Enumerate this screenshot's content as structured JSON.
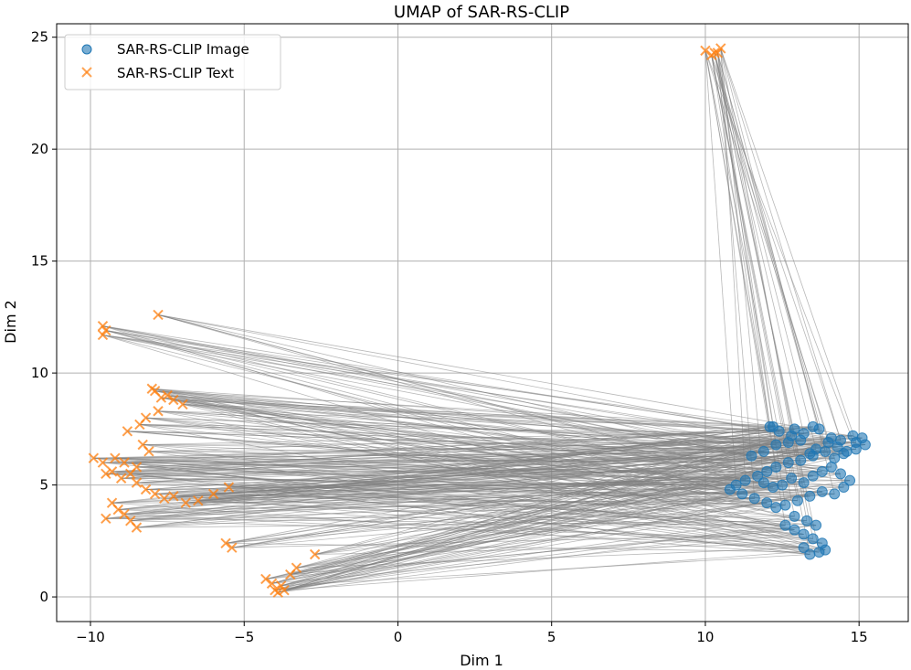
{
  "chart_data": {
    "type": "scatter",
    "title": "UMAP of SAR-RS-CLIP",
    "xlabel": "Dim 1",
    "ylabel": "Dim 2",
    "xlim": [
      -11.1,
      16.6
    ],
    "ylim": [
      -1.1,
      25.6
    ],
    "xticks": [
      -10,
      -5,
      0,
      5,
      10,
      15
    ],
    "yticks": [
      0,
      5,
      10,
      15,
      20,
      25
    ],
    "x_tick_labels": [
      "−10",
      "−5",
      "0",
      "5",
      "10",
      "15"
    ],
    "y_tick_labels": [
      "0",
      "5",
      "10",
      "15",
      "20",
      "25"
    ],
    "grid": true,
    "legend_position": "upper-left",
    "connectors": "each text point is joined by a gray line to its paired image point",
    "colors": {
      "image": "#1f77b4",
      "text": "#ff7f0e",
      "connector": "#808080",
      "grid": "#b0b0b0"
    },
    "series": [
      {
        "name": "SAR-RS-CLIP Image",
        "marker": "circle",
        "color": "#1f77b4",
        "x": [
          12.1,
          12.4,
          12.9,
          13.2,
          13.5,
          13.7,
          14.1,
          14.4,
          14.8,
          15.1,
          15.2,
          14.9,
          14.5,
          14.2,
          13.9,
          13.5,
          13.1,
          12.7,
          12.3,
          12.0,
          11.7,
          11.3,
          11.0,
          10.8,
          11.2,
          11.6,
          12.0,
          12.3,
          12.6,
          13.0,
          13.4,
          13.8,
          14.2,
          14.5,
          14.7,
          14.4,
          14.1,
          13.8,
          13.5,
          13.2,
          12.8,
          12.5,
          12.2,
          11.9,
          12.6,
          12.9,
          13.2,
          13.5,
          13.8,
          13.9,
          13.7,
          13.4,
          13.2,
          13.6,
          13.3,
          12.9,
          11.5,
          11.9,
          12.3,
          12.7,
          13.1,
          13.6,
          14.0,
          14.3,
          14.6,
          14.9,
          12.2,
          12.8,
          13.4
        ],
        "y": [
          7.6,
          7.4,
          7.5,
          7.3,
          7.6,
          7.5,
          7.1,
          7.0,
          7.2,
          7.1,
          6.8,
          6.6,
          6.4,
          6.2,
          6.5,
          6.3,
          6.1,
          6.0,
          5.8,
          5.6,
          5.4,
          5.2,
          5.0,
          4.8,
          4.6,
          4.4,
          4.2,
          4.0,
          4.1,
          4.3,
          4.5,
          4.7,
          4.6,
          4.9,
          5.2,
          5.5,
          5.8,
          5.6,
          5.4,
          5.1,
          5.3,
          5.0,
          4.9,
          5.1,
          3.2,
          3.0,
          2.8,
          2.6,
          2.4,
          2.1,
          2.0,
          1.9,
          2.2,
          3.2,
          3.4,
          3.6,
          6.3,
          6.5,
          6.8,
          6.9,
          7.0,
          6.6,
          6.9,
          6.7,
          6.5,
          6.9,
          7.6,
          7.2,
          6.4
        ]
      },
      {
        "name": "SAR-RS-CLIP Text",
        "marker": "x",
        "color": "#ff7f0e",
        "x": [
          10.0,
          10.2,
          10.4,
          10.5,
          10.3,
          -9.6,
          -9.5,
          -9.6,
          -7.8,
          -7.9,
          -8.0,
          -7.7,
          -7.5,
          -7.3,
          -7.0,
          -7.8,
          -8.2,
          -8.4,
          -8.8,
          -9.9,
          -9.6,
          -9.2,
          -8.9,
          -8.5,
          -8.1,
          -8.3,
          -9.5,
          -9.3,
          -9.0,
          -8.7,
          -8.5,
          -8.2,
          -7.9,
          -7.6,
          -7.3,
          -6.9,
          -6.5,
          -6.0,
          -5.5,
          -8.9,
          -9.1,
          -9.5,
          -9.3,
          -8.7,
          -8.5,
          -5.6,
          -5.4,
          -4.3,
          -4.1,
          -3.9,
          -3.7,
          -3.5,
          -3.3,
          -2.7,
          -4.0,
          -3.8
        ],
        "y": [
          24.4,
          24.2,
          24.3,
          24.5,
          24.3,
          12.1,
          11.9,
          11.7,
          12.6,
          9.2,
          9.3,
          8.9,
          9.0,
          8.8,
          8.6,
          8.3,
          8.0,
          7.7,
          7.4,
          6.2,
          6.0,
          6.2,
          6.0,
          5.8,
          6.5,
          6.8,
          5.5,
          5.6,
          5.3,
          5.5,
          5.1,
          4.8,
          4.6,
          4.4,
          4.5,
          4.2,
          4.3,
          4.6,
          4.9,
          3.7,
          3.9,
          3.5,
          4.2,
          3.4,
          3.1,
          2.4,
          2.2,
          0.8,
          0.6,
          0.2,
          0.3,
          1.0,
          1.3,
          1.9,
          0.3,
          0.5
        ]
      }
    ]
  }
}
